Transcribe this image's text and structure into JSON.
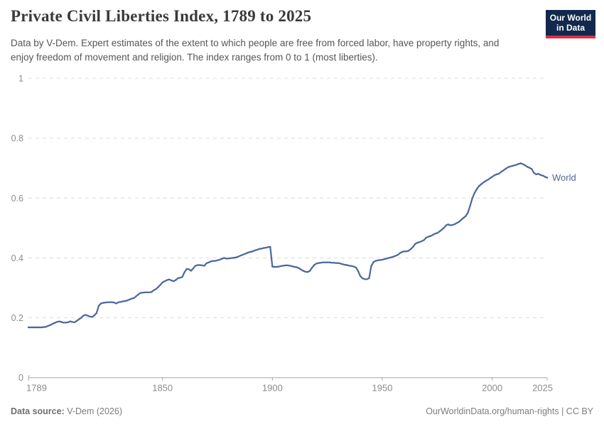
{
  "header": {
    "title": "Private Civil Liberties Index, 1789 to 2025",
    "subtitle": "Data by V-Dem. Expert estimates of the extent to which people are free from forced labor, have property rights, and enjoy freedom of movement and religion. The index ranges from 0 to 1 (most liberties).",
    "logo": {
      "line1": "Our World",
      "line2": "in Data"
    }
  },
  "footer": {
    "source_label": "Data source:",
    "source_value": " V-Dem (2026)",
    "link": "OurWorldinData.org/human-rights",
    "license": " | CC BY"
  },
  "colors": {
    "line": "#4c689c",
    "grid": "#dcdcdc",
    "axis_line": "#a8a8a8",
    "axis_text": "#8b8b8b",
    "logo_bg": "#12294d",
    "logo_red": "#dc2e44",
    "title_text": "#3a3a3a",
    "subtitle_text": "#565656"
  },
  "chart_data": {
    "type": "line",
    "title": "Private Civil Liberties Index, 1789 to 2025",
    "xlabel": "",
    "ylabel": "",
    "xlim": [
      1789,
      2025
    ],
    "ylim": [
      0,
      1
    ],
    "x_ticks": [
      1789,
      1850,
      1900,
      1950,
      2000,
      2025
    ],
    "y_ticks": [
      0,
      0.2,
      0.4,
      0.6,
      0.8,
      1
    ],
    "grid": "horizontal dashed",
    "legend_position": "end-of-line label",
    "series": [
      {
        "name": "World",
        "points": [
          [
            1789,
            0.168
          ],
          [
            1790,
            0.168
          ],
          [
            1791,
            0.168
          ],
          [
            1792,
            0.168
          ],
          [
            1793,
            0.168
          ],
          [
            1794,
            0.168
          ],
          [
            1795,
            0.168
          ],
          [
            1796,
            0.169
          ],
          [
            1797,
            0.17
          ],
          [
            1798,
            0.173
          ],
          [
            1799,
            0.176
          ],
          [
            1800,
            0.18
          ],
          [
            1801,
            0.183
          ],
          [
            1802,
            0.186
          ],
          [
            1803,
            0.188
          ],
          [
            1804,
            0.186
          ],
          [
            1805,
            0.184
          ],
          [
            1806,
            0.184
          ],
          [
            1807,
            0.185
          ],
          [
            1808,
            0.188
          ],
          [
            1809,
            0.186
          ],
          [
            1810,
            0.185
          ],
          [
            1811,
            0.19
          ],
          [
            1812,
            0.195
          ],
          [
            1813,
            0.2
          ],
          [
            1814,
            0.207
          ],
          [
            1815,
            0.21
          ],
          [
            1816,
            0.207
          ],
          [
            1817,
            0.204
          ],
          [
            1818,
            0.203
          ],
          [
            1819,
            0.208
          ],
          [
            1820,
            0.216
          ],
          [
            1821,
            0.24
          ],
          [
            1822,
            0.248
          ],
          [
            1823,
            0.25
          ],
          [
            1824,
            0.251
          ],
          [
            1825,
            0.252
          ],
          [
            1826,
            0.252
          ],
          [
            1827,
            0.252
          ],
          [
            1828,
            0.251
          ],
          [
            1829,
            0.248
          ],
          [
            1830,
            0.252
          ],
          [
            1831,
            0.253
          ],
          [
            1832,
            0.255
          ],
          [
            1833,
            0.256
          ],
          [
            1834,
            0.258
          ],
          [
            1835,
            0.261
          ],
          [
            1836,
            0.264
          ],
          [
            1837,
            0.266
          ],
          [
            1838,
            0.272
          ],
          [
            1839,
            0.278
          ],
          [
            1840,
            0.283
          ],
          [
            1841,
            0.284
          ],
          [
            1842,
            0.285
          ],
          [
            1843,
            0.285
          ],
          [
            1844,
            0.285
          ],
          [
            1845,
            0.286
          ],
          [
            1846,
            0.292
          ],
          [
            1847,
            0.296
          ],
          [
            1848,
            0.302
          ],
          [
            1849,
            0.31
          ],
          [
            1850,
            0.318
          ],
          [
            1851,
            0.322
          ],
          [
            1852,
            0.326
          ],
          [
            1853,
            0.328
          ],
          [
            1854,
            0.325
          ],
          [
            1855,
            0.322
          ],
          [
            1856,
            0.326
          ],
          [
            1857,
            0.332
          ],
          [
            1858,
            0.334
          ],
          [
            1859,
            0.336
          ],
          [
            1860,
            0.352
          ],
          [
            1861,
            0.363
          ],
          [
            1862,
            0.362
          ],
          [
            1863,
            0.357
          ],
          [
            1864,
            0.365
          ],
          [
            1865,
            0.374
          ],
          [
            1866,
            0.376
          ],
          [
            1867,
            0.376
          ],
          [
            1868,
            0.375
          ],
          [
            1869,
            0.374
          ],
          [
            1870,
            0.382
          ],
          [
            1871,
            0.385
          ],
          [
            1872,
            0.388
          ],
          [
            1873,
            0.39
          ],
          [
            1874,
            0.39
          ],
          [
            1875,
            0.392
          ],
          [
            1876,
            0.394
          ],
          [
            1877,
            0.397
          ],
          [
            1878,
            0.4
          ],
          [
            1879,
            0.398
          ],
          [
            1880,
            0.398
          ],
          [
            1881,
            0.399
          ],
          [
            1882,
            0.4
          ],
          [
            1883,
            0.401
          ],
          [
            1884,
            0.403
          ],
          [
            1885,
            0.406
          ],
          [
            1886,
            0.409
          ],
          [
            1887,
            0.412
          ],
          [
            1888,
            0.415
          ],
          [
            1889,
            0.418
          ],
          [
            1890,
            0.42
          ],
          [
            1891,
            0.422
          ],
          [
            1892,
            0.425
          ],
          [
            1893,
            0.427
          ],
          [
            1894,
            0.43
          ],
          [
            1895,
            0.431
          ],
          [
            1896,
            0.433
          ],
          [
            1897,
            0.434
          ],
          [
            1898,
            0.436
          ],
          [
            1899,
            0.437
          ],
          [
            1900,
            0.371
          ],
          [
            1901,
            0.37
          ],
          [
            1902,
            0.37
          ],
          [
            1903,
            0.371
          ],
          [
            1904,
            0.373
          ],
          [
            1905,
            0.374
          ],
          [
            1906,
            0.375
          ],
          [
            1907,
            0.375
          ],
          [
            1908,
            0.374
          ],
          [
            1909,
            0.372
          ],
          [
            1910,
            0.37
          ],
          [
            1911,
            0.369
          ],
          [
            1912,
            0.366
          ],
          [
            1913,
            0.361
          ],
          [
            1914,
            0.357
          ],
          [
            1915,
            0.354
          ],
          [
            1916,
            0.353
          ],
          [
            1917,
            0.356
          ],
          [
            1918,
            0.367
          ],
          [
            1919,
            0.376
          ],
          [
            1920,
            0.381
          ],
          [
            1921,
            0.383
          ],
          [
            1922,
            0.384
          ],
          [
            1923,
            0.385
          ],
          [
            1924,
            0.385
          ],
          [
            1925,
            0.385
          ],
          [
            1926,
            0.385
          ],
          [
            1927,
            0.384
          ],
          [
            1928,
            0.384
          ],
          [
            1929,
            0.383
          ],
          [
            1930,
            0.383
          ],
          [
            1931,
            0.381
          ],
          [
            1932,
            0.379
          ],
          [
            1933,
            0.377
          ],
          [
            1934,
            0.376
          ],
          [
            1935,
            0.374
          ],
          [
            1936,
            0.373
          ],
          [
            1937,
            0.371
          ],
          [
            1938,
            0.368
          ],
          [
            1939,
            0.356
          ],
          [
            1940,
            0.339
          ],
          [
            1941,
            0.332
          ],
          [
            1942,
            0.329
          ],
          [
            1943,
            0.329
          ],
          [
            1944,
            0.332
          ],
          [
            1945,
            0.373
          ],
          [
            1946,
            0.386
          ],
          [
            1947,
            0.39
          ],
          [
            1948,
            0.392
          ],
          [
            1949,
            0.393
          ],
          [
            1950,
            0.394
          ],
          [
            1951,
            0.396
          ],
          [
            1952,
            0.398
          ],
          [
            1953,
            0.4
          ],
          [
            1954,
            0.402
          ],
          [
            1955,
            0.404
          ],
          [
            1956,
            0.407
          ],
          [
            1957,
            0.41
          ],
          [
            1958,
            0.416
          ],
          [
            1959,
            0.42
          ],
          [
            1960,
            0.422
          ],
          [
            1961,
            0.422
          ],
          [
            1962,
            0.424
          ],
          [
            1963,
            0.43
          ],
          [
            1964,
            0.437
          ],
          [
            1965,
            0.447
          ],
          [
            1966,
            0.451
          ],
          [
            1967,
            0.453
          ],
          [
            1968,
            0.456
          ],
          [
            1969,
            0.46
          ],
          [
            1970,
            0.468
          ],
          [
            1971,
            0.471
          ],
          [
            1972,
            0.473
          ],
          [
            1973,
            0.477
          ],
          [
            1974,
            0.481
          ],
          [
            1975,
            0.483
          ],
          [
            1976,
            0.488
          ],
          [
            1977,
            0.494
          ],
          [
            1978,
            0.5
          ],
          [
            1979,
            0.509
          ],
          [
            1980,
            0.512
          ],
          [
            1981,
            0.509
          ],
          [
            1982,
            0.51
          ],
          [
            1983,
            0.513
          ],
          [
            1984,
            0.517
          ],
          [
            1985,
            0.521
          ],
          [
            1986,
            0.528
          ],
          [
            1987,
            0.534
          ],
          [
            1988,
            0.54
          ],
          [
            1989,
            0.552
          ],
          [
            1990,
            0.575
          ],
          [
            1991,
            0.6
          ],
          [
            1992,
            0.617
          ],
          [
            1993,
            0.63
          ],
          [
            1994,
            0.64
          ],
          [
            1995,
            0.646
          ],
          [
            1996,
            0.652
          ],
          [
            1997,
            0.657
          ],
          [
            1998,
            0.661
          ],
          [
            1999,
            0.666
          ],
          [
            2000,
            0.671
          ],
          [
            2001,
            0.676
          ],
          [
            2002,
            0.679
          ],
          [
            2003,
            0.681
          ],
          [
            2004,
            0.687
          ],
          [
            2005,
            0.692
          ],
          [
            2006,
            0.697
          ],
          [
            2007,
            0.702
          ],
          [
            2008,
            0.705
          ],
          [
            2009,
            0.707
          ],
          [
            2010,
            0.709
          ],
          [
            2011,
            0.711
          ],
          [
            2012,
            0.714
          ],
          [
            2013,
            0.716
          ],
          [
            2014,
            0.713
          ],
          [
            2015,
            0.709
          ],
          [
            2016,
            0.704
          ],
          [
            2017,
            0.701
          ],
          [
            2018,
            0.697
          ],
          [
            2019,
            0.684
          ],
          [
            2020,
            0.679
          ],
          [
            2021,
            0.681
          ],
          [
            2022,
            0.677
          ],
          [
            2023,
            0.675
          ],
          [
            2024,
            0.671
          ],
          [
            2025,
            0.668
          ]
        ]
      }
    ]
  }
}
